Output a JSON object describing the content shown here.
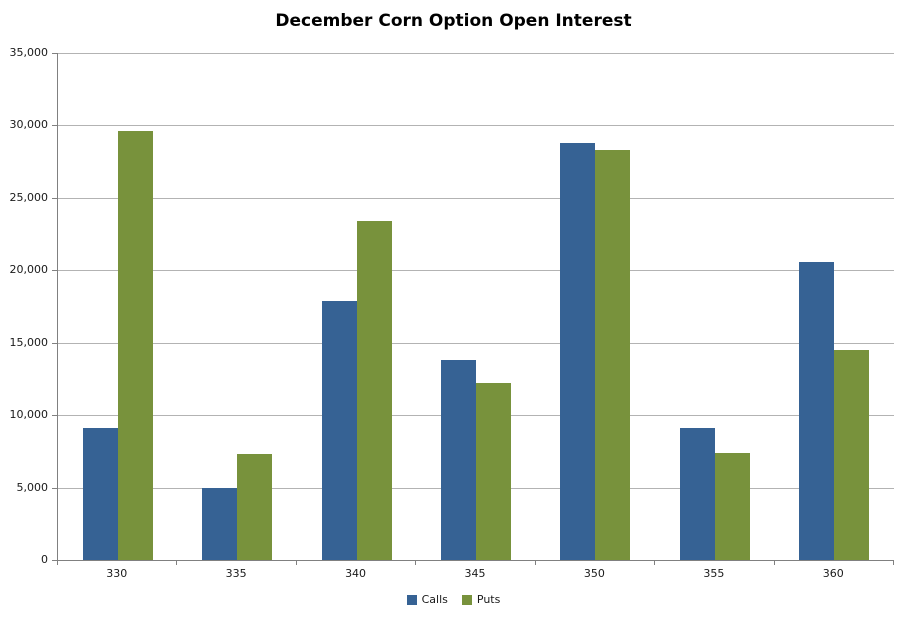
{
  "chart_data": {
    "type": "bar",
    "title": "December Corn Option Open Interest",
    "categories": [
      "330",
      "335",
      "340",
      "345",
      "350",
      "355",
      "360"
    ],
    "series": [
      {
        "name": "Calls",
        "color": "#366294",
        "values": [
          9100,
          5000,
          17900,
          13800,
          28800,
          9100,
          20600
        ]
      },
      {
        "name": "Puts",
        "color": "#78923C",
        "values": [
          29600,
          7300,
          23400,
          12200,
          28300,
          7400,
          14500
        ]
      }
    ],
    "xlabel": "",
    "ylabel": "",
    "ylim": [
      0,
      35000
    ],
    "y_tick_step": 5000,
    "y_tick_labels": [
      "0",
      "5,000",
      "10,000",
      "15,000",
      "20,000",
      "25,000",
      "30,000",
      "35,000"
    ],
    "grid": "horizontal",
    "legend_position": "bottom-center",
    "colors": {
      "gridline": "#b3b3b3",
      "axis": "#808080",
      "text": "#1a1a1a",
      "background": "#ffffff"
    }
  }
}
